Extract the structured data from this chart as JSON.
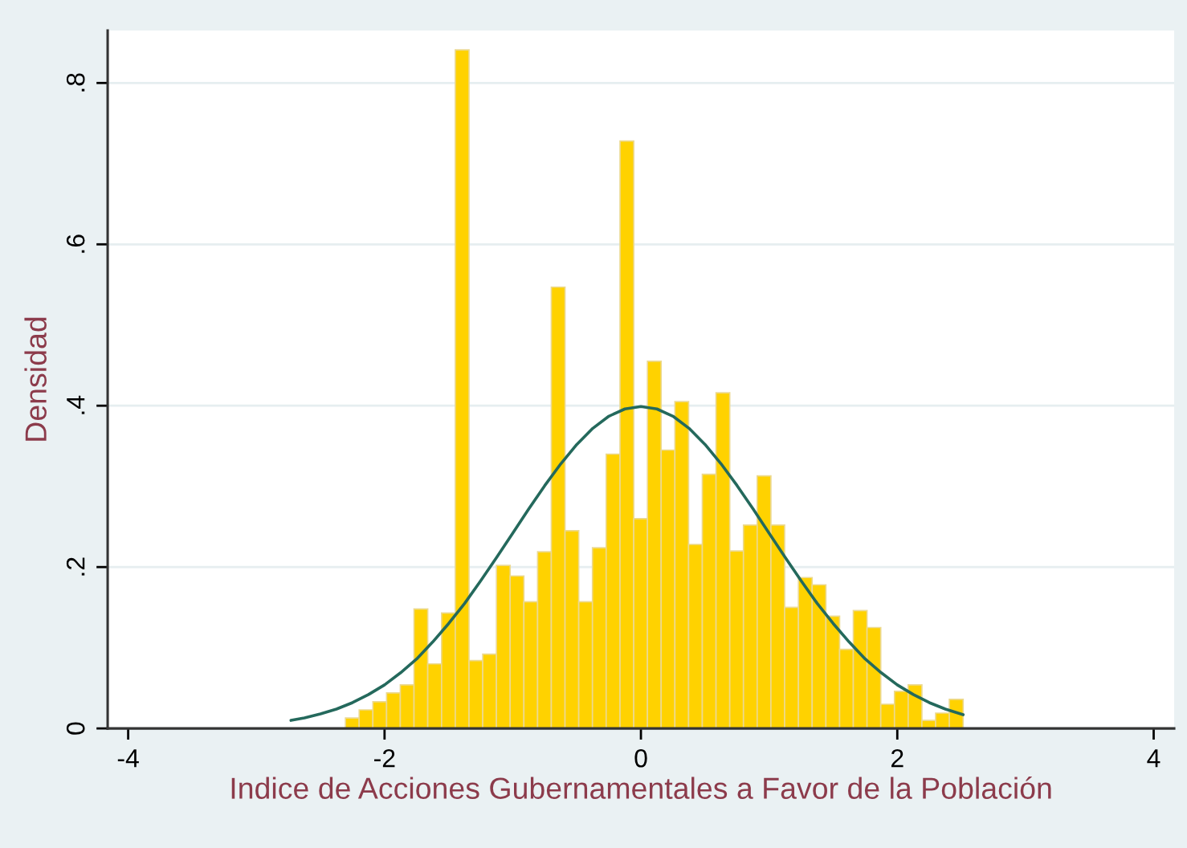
{
  "chart_data": {
    "type": "histogram",
    "xlabel": "Indice de Acciones Gubernamentales a Favor de la Población",
    "ylabel": "Densidad",
    "bins": [
      -2.305,
      -2.198,
      -2.091,
      -1.984,
      -1.877,
      -1.77,
      -1.663,
      -1.555,
      -1.448,
      -1.341,
      -1.234,
      -1.127,
      -1.02,
      -0.913,
      -0.806,
      -0.699,
      -0.592,
      -0.485,
      -0.378,
      -0.271,
      -0.163,
      -0.056,
      0.051,
      0.158,
      0.265,
      0.372,
      0.479,
      0.586,
      0.693,
      0.8,
      0.907,
      1.014,
      1.121,
      1.229,
      1.336,
      1.443,
      1.55,
      1.657,
      1.764,
      1.871,
      1.978,
      2.085,
      2.192,
      2.299,
      2.406,
      2.514
    ],
    "values": [
      0.013,
      0.023,
      0.033,
      0.044,
      0.054,
      0.148,
      0.08,
      0.143,
      0.841,
      0.084,
      0.092,
      0.202,
      0.189,
      0.157,
      0.219,
      0.547,
      0.245,
      0.157,
      0.224,
      0.34,
      0.728,
      0.26,
      0.455,
      0.345,
      0.405,
      0.228,
      0.315,
      0.416,
      0.22,
      0.252,
      0.313,
      0.252,
      0.15,
      0.187,
      0.178,
      0.139,
      0.098,
      0.146,
      0.125,
      0.03,
      0.046,
      0.054,
      0.01,
      0.019,
      0.036
    ],
    "color": "#ffd200",
    "series": [
      {
        "type": "line",
        "color": "#24695c",
        "x": [
          -2.73,
          -2.625,
          -2.5,
          -2.375,
          -2.25,
          -2.125,
          -2.0,
          -1.875,
          -1.75,
          -1.625,
          -1.5,
          -1.375,
          -1.25,
          -1.125,
          -1.0,
          -0.875,
          -0.75,
          -0.625,
          -0.5,
          -0.375,
          -0.25,
          -0.125,
          0.0,
          0.125,
          0.25,
          0.375,
          0.5,
          0.625,
          0.75,
          0.875,
          1.0,
          1.125,
          1.25,
          1.375,
          1.5,
          1.625,
          1.75,
          1.875,
          2.0,
          2.125,
          2.25,
          2.375,
          2.514
        ],
        "values": [
          0.01,
          0.013,
          0.018,
          0.024,
          0.032,
          0.042,
          0.054,
          0.069,
          0.086,
          0.107,
          0.13,
          0.155,
          0.183,
          0.212,
          0.242,
          0.272,
          0.301,
          0.328,
          0.352,
          0.372,
          0.387,
          0.396,
          0.399,
          0.396,
          0.387,
          0.372,
          0.352,
          0.328,
          0.301,
          0.272,
          0.242,
          0.212,
          0.183,
          0.155,
          0.13,
          0.107,
          0.086,
          0.069,
          0.054,
          0.042,
          0.032,
          0.024,
          0.017
        ]
      }
    ],
    "xlim": [
      -4.16,
      4.16
    ],
    "ylim": [
      0,
      0.865
    ],
    "xticks": [
      -4,
      -2,
      0,
      2,
      4
    ],
    "yticks": [
      0,
      {
        "value": 0.2,
        "label": ".2"
      },
      {
        "value": 0.4,
        "label": ".4"
      },
      {
        "value": 0.6,
        "label": ".6"
      },
      {
        "value": 0.8,
        "label": ".8"
      }
    ],
    "grid": "y"
  }
}
